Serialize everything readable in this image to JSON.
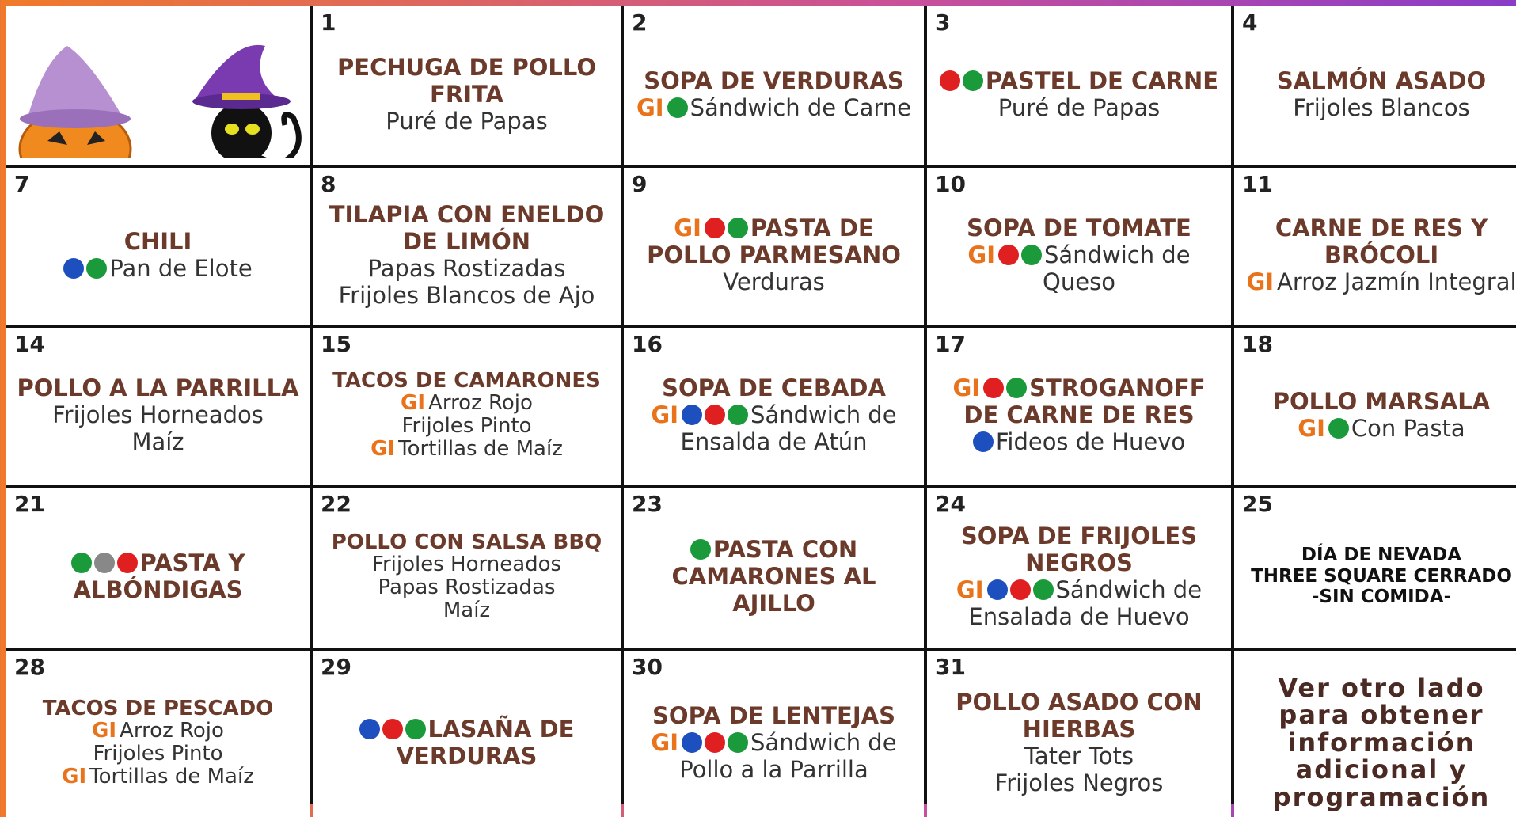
{
  "cells": [
    {
      "day": null,
      "rows": []
    },
    {
      "day": "1",
      "rows": [
        {
          "style": "title",
          "text": "PECHUGA DE POLLO FRITA"
        },
        {
          "style": "side",
          "text": "Puré de Papas"
        }
      ]
    },
    {
      "day": "2",
      "rows": [
        {
          "style": "title",
          "text": "SOPA DE VERDURAS"
        },
        {
          "style": "side",
          "gi": "GI",
          "dots": [
            "#1a9a3a"
          ],
          "text": "Sándwich de Carne"
        }
      ]
    },
    {
      "day": "3",
      "rows": [
        {
          "style": "title",
          "dots": [
            "#e02020",
            "#1a9a3a"
          ],
          "text": "PASTEL DE CARNE"
        },
        {
          "style": "side",
          "text": "Puré de Papas"
        }
      ]
    },
    {
      "day": "4",
      "rows": [
        {
          "style": "title",
          "text": "SALMÓN ASADO"
        },
        {
          "style": "side",
          "text": "Frijoles Blancos"
        }
      ]
    },
    {
      "day": "7",
      "rows": [
        {
          "style": "title",
          "text": "CHILI"
        },
        {
          "style": "side",
          "dots": [
            "#1d4fbf",
            "#1a9a3a"
          ],
          "text": "Pan de Elote"
        }
      ]
    },
    {
      "day": "8",
      "rows": [
        {
          "style": "title",
          "text": "TILAPIA CON ENELDO DE LIMÓN"
        },
        {
          "style": "side",
          "text": "Papas Rostizadas"
        },
        {
          "style": "side",
          "text": "Frijoles Blancos de Ajo"
        }
      ]
    },
    {
      "day": "9",
      "rows": [
        {
          "style": "title",
          "gi": "GI",
          "dots": [
            "#e02020",
            "#1a9a3a"
          ],
          "text": "PASTA DE POLLO PARMESANO"
        },
        {
          "style": "side",
          "text": "Verduras"
        }
      ]
    },
    {
      "day": "10",
      "rows": [
        {
          "style": "title",
          "text": "SOPA DE TOMATE"
        },
        {
          "style": "side",
          "gi": "GI",
          "dots": [
            "#e02020",
            "#1a9a3a"
          ],
          "text": "Sándwich de Queso"
        }
      ]
    },
    {
      "day": "11",
      "rows": [
        {
          "style": "title",
          "text": "CARNE DE RES Y BRÓCOLI"
        },
        {
          "style": "side",
          "gi": "GI",
          "text": "Arroz Jazmín Integral"
        }
      ]
    },
    {
      "day": "14",
      "rows": [
        {
          "style": "title",
          "text": "POLLO A LA PARRILLA"
        },
        {
          "style": "side",
          "text": "Frijoles Horneados"
        },
        {
          "style": "side",
          "text": "Maíz"
        }
      ]
    },
    {
      "day": "15",
      "rows": [
        {
          "style": "title",
          "text": "TACOS DE CAMARONES"
        },
        {
          "style": "side",
          "gi": "GI",
          "text": "Arroz Rojo"
        },
        {
          "style": "side",
          "text": "Frijoles Pinto"
        },
        {
          "style": "side",
          "gi": "GI",
          "text": "Tortillas de Maíz"
        }
      ]
    },
    {
      "day": "16",
      "rows": [
        {
          "style": "title",
          "text": "SOPA DE CEBADA"
        },
        {
          "style": "side",
          "gi": "GI",
          "dots": [
            "#1d4fbf",
            "#e02020",
            "#1a9a3a"
          ],
          "text": "Sándwich de Ensalda de Atún"
        }
      ]
    },
    {
      "day": "17",
      "rows": [
        {
          "style": "title",
          "gi": "GI",
          "dots": [
            "#e02020",
            "#1a9a3a"
          ],
          "text": "STROGANOFF DE CARNE DE RES"
        },
        {
          "style": "side",
          "dots": [
            "#1d4fbf"
          ],
          "text": "Fideos de Huevo"
        }
      ]
    },
    {
      "day": "18",
      "rows": [
        {
          "style": "title",
          "text": "POLLO MARSALA"
        },
        {
          "style": "side",
          "gi": "GI",
          "dots": [
            "#1a9a3a"
          ],
          "text": "Con Pasta"
        }
      ]
    },
    {
      "day": "21",
      "rows": [
        {
          "style": "title",
          "dots": [
            "#1a9a3a",
            "#888888",
            "#e02020"
          ],
          "text": "PASTA Y ALBÓNDIGAS"
        }
      ]
    },
    {
      "day": "22",
      "rows": [
        {
          "style": "title",
          "text": "POLLO CON SALSA BBQ"
        },
        {
          "style": "side",
          "text": "Frijoles Horneados"
        },
        {
          "style": "side",
          "text": "Papas Rostizadas"
        },
        {
          "style": "side",
          "text": "Maíz"
        }
      ]
    },
    {
      "day": "23",
      "rows": [
        {
          "style": "title",
          "dots": [
            "#1a9a3a"
          ],
          "text": "PASTA CON CAMARONES AL AJILLO"
        }
      ]
    },
    {
      "day": "24",
      "rows": [
        {
          "style": "title",
          "text": "SOPA DE FRIJOLES NEGROS"
        },
        {
          "style": "side",
          "gi": "GI",
          "dots": [
            "#1d4fbf",
            "#e02020",
            "#1a9a3a"
          ],
          "text": "Sándwich de Ensalada de Huevo"
        }
      ]
    },
    {
      "day": "25",
      "rows": [
        {
          "style": "notice",
          "text": "DÍA DE NEVADA"
        },
        {
          "style": "notice",
          "text": "THREE SQUARE CERRADO"
        },
        {
          "style": "notice",
          "text": "-SIN COMIDA-"
        }
      ]
    },
    {
      "day": "28",
      "rows": [
        {
          "style": "title",
          "text": "TACOS DE PESCADO"
        },
        {
          "style": "side",
          "gi": "GI",
          "text": "Arroz Rojo"
        },
        {
          "style": "side",
          "text": "Frijoles Pinto"
        },
        {
          "style": "side",
          "gi": "GI",
          "text": "Tortillas de Maíz"
        }
      ]
    },
    {
      "day": "29",
      "rows": [
        {
          "style": "title",
          "dots": [
            "#1d4fbf",
            "#e02020",
            "#1a9a3a"
          ],
          "text": "LASAÑA DE VERDURAS"
        }
      ]
    },
    {
      "day": "30",
      "rows": [
        {
          "style": "title",
          "text": "SOPA DE LENTEJAS"
        },
        {
          "style": "side",
          "gi": "GI",
          "dots": [
            "#1d4fbf",
            "#e02020",
            "#1a9a3a"
          ],
          "text": "Sándwich de Pollo a la Parrilla"
        }
      ]
    },
    {
      "day": "31",
      "rows": [
        {
          "style": "title",
          "text": "POLLO ASADO CON HIERBAS"
        },
        {
          "style": "side",
          "text": "Tater Tots"
        },
        {
          "style": "side",
          "text": "Frijoles Negros"
        }
      ]
    },
    {
      "day": null,
      "rows": [
        {
          "style": "note",
          "text": "Ver otro lado para obtener información adicional y programación"
        }
      ]
    }
  ]
}
